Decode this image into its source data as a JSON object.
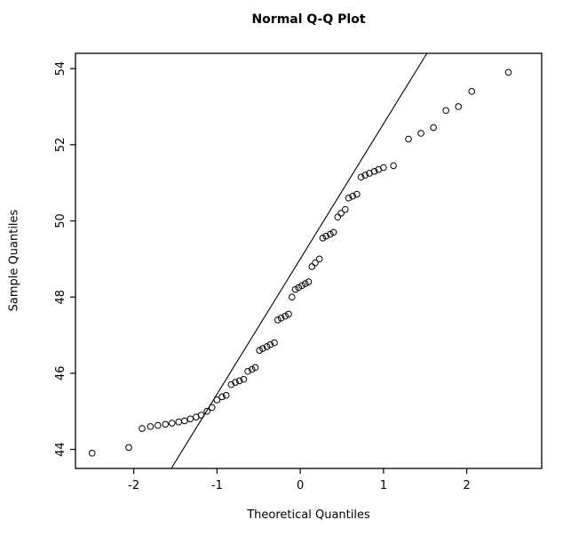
{
  "chart_data": {
    "type": "scatter",
    "title": "Normal Q-Q Plot",
    "xlabel": "Theoretical Quantiles",
    "ylabel": "Sample Quantiles",
    "xlim": [
      -2.7,
      2.9
    ],
    "ylim": [
      43.5,
      54.4
    ],
    "x_ticks": [
      -2,
      -1,
      0,
      1,
      2
    ],
    "y_ticks": [
      44,
      46,
      48,
      50,
      52,
      54
    ],
    "grid": false,
    "legend": false,
    "background": "#ffffff",
    "marker": {
      "style": "open-circle",
      "color": "#000000",
      "radius": 3.3
    },
    "reference_line": {
      "slope": 3.55,
      "intercept": 49.0,
      "color": "#000000"
    },
    "points": [
      [
        -2.5,
        43.9
      ],
      [
        -2.06,
        44.05
      ],
      [
        -1.9,
        44.55
      ],
      [
        -1.8,
        44.6
      ],
      [
        -1.71,
        44.63
      ],
      [
        -1.62,
        44.66
      ],
      [
        -1.54,
        44.69
      ],
      [
        -1.46,
        44.72
      ],
      [
        -1.39,
        44.75
      ],
      [
        -1.32,
        44.8
      ],
      [
        -1.25,
        44.85
      ],
      [
        -1.19,
        44.9
      ],
      [
        -1.12,
        45.0
      ],
      [
        -1.06,
        45.1
      ],
      [
        -1.0,
        45.3
      ],
      [
        -0.94,
        45.38
      ],
      [
        -0.89,
        45.42
      ],
      [
        -0.83,
        45.7
      ],
      [
        -0.78,
        45.76
      ],
      [
        -0.73,
        45.8
      ],
      [
        -0.68,
        45.84
      ],
      [
        -0.63,
        46.05
      ],
      [
        -0.58,
        46.1
      ],
      [
        -0.54,
        46.15
      ],
      [
        -0.49,
        46.6
      ],
      [
        -0.45,
        46.65
      ],
      [
        -0.4,
        46.7
      ],
      [
        -0.36,
        46.75
      ],
      [
        -0.31,
        46.8
      ],
      [
        -0.27,
        47.4
      ],
      [
        -0.23,
        47.45
      ],
      [
        -0.18,
        47.5
      ],
      [
        -0.14,
        47.55
      ],
      [
        -0.1,
        48.0
      ],
      [
        -0.06,
        48.2
      ],
      [
        -0.02,
        48.25
      ],
      [
        0.02,
        48.3
      ],
      [
        0.06,
        48.35
      ],
      [
        0.1,
        48.4
      ],
      [
        0.14,
        48.8
      ],
      [
        0.18,
        48.9
      ],
      [
        0.23,
        49.0
      ],
      [
        0.27,
        49.55
      ],
      [
        0.31,
        49.6
      ],
      [
        0.36,
        49.65
      ],
      [
        0.4,
        49.7
      ],
      [
        0.45,
        50.1
      ],
      [
        0.49,
        50.2
      ],
      [
        0.54,
        50.3
      ],
      [
        0.58,
        50.6
      ],
      [
        0.63,
        50.65
      ],
      [
        0.68,
        50.7
      ],
      [
        0.73,
        51.15
      ],
      [
        0.78,
        51.2
      ],
      [
        0.83,
        51.25
      ],
      [
        0.89,
        51.3
      ],
      [
        0.94,
        51.35
      ],
      [
        1.0,
        51.4
      ],
      [
        1.12,
        51.45
      ],
      [
        1.3,
        52.15
      ],
      [
        1.45,
        52.3
      ],
      [
        1.6,
        52.45
      ],
      [
        1.75,
        52.9
      ],
      [
        1.9,
        53.0
      ],
      [
        2.06,
        53.4
      ],
      [
        2.5,
        53.9
      ]
    ]
  }
}
